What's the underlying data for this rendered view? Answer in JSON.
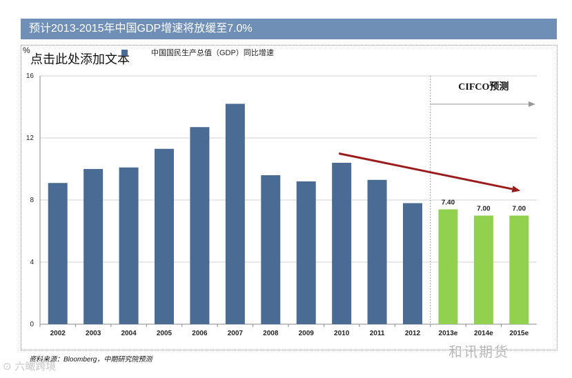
{
  "header": {
    "title": "预计2013-2015年中国GDP增速将放缓至7.0%"
  },
  "placeholder_text": "点击此处添加文本",
  "source_note": "资料来源：Bloomberg，中期研究院预测",
  "watermarks": {
    "left": "⊙ 六瞰跨境",
    "right": "和讯期货"
  },
  "colors": {
    "actual": "#4a6b94",
    "forecast": "#92d050",
    "trend": "#9b1c1c",
    "title_bg": "#6f8fb6"
  },
  "chart_data": {
    "type": "bar",
    "title": "中国国民生产总值（GDP）同比增速",
    "ylabel": "%",
    "ylim": [
      0,
      16
    ],
    "yticks": [
      0,
      4,
      8,
      12,
      16
    ],
    "grid": true,
    "categories": [
      "2002",
      "2003",
      "2004",
      "2005",
      "2006",
      "2007",
      "2008",
      "2009",
      "2010",
      "2011",
      "2012",
      "2013e",
      "2014e",
      "2015e"
    ],
    "series": [
      {
        "name": "中国国民生产总值（GDP）同比增速",
        "values": [
          9.1,
          10.0,
          10.1,
          11.3,
          12.7,
          14.2,
          9.6,
          9.2,
          10.4,
          9.3,
          7.8,
          7.4,
          7.0,
          7.0
        ]
      }
    ],
    "forecast_from_index": 11,
    "data_labels": {
      "11": "7.40",
      "12": "7.00",
      "13": "7.00"
    },
    "annotation": "CIFCO预测",
    "trend_arrow": {
      "from_category": "2010",
      "from_value": 11.0,
      "to_category": "2015e",
      "to_value": 8.6
    }
  }
}
